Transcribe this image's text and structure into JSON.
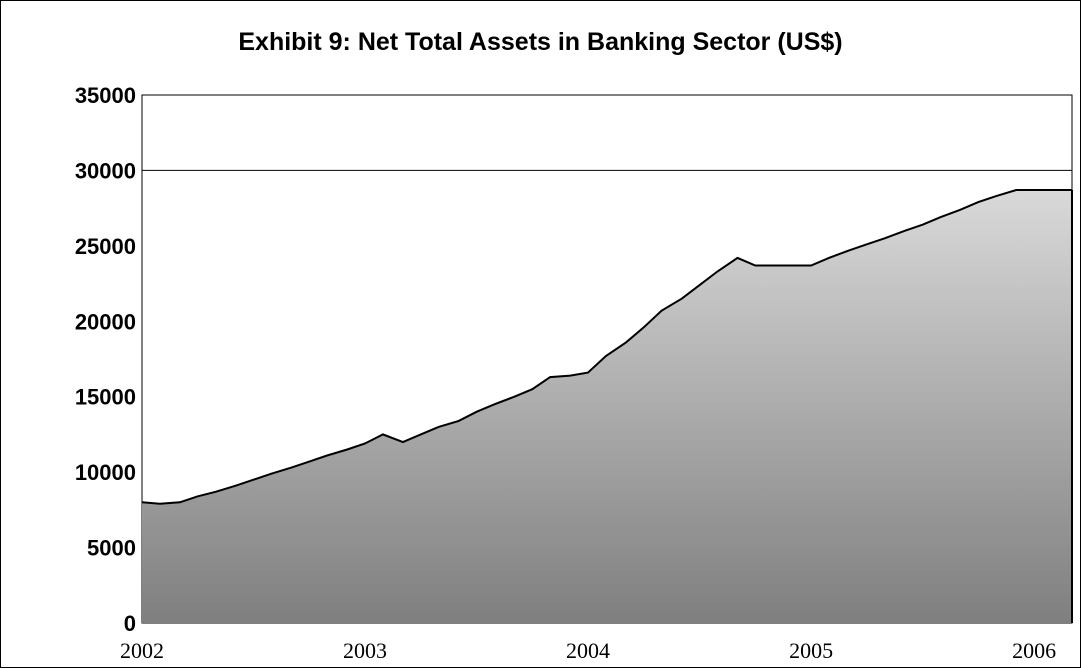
{
  "chart_data": {
    "type": "area",
    "title": "Exhibit 9: Net Total Assets in Banking Sector (US$)",
    "xlabel": "",
    "ylabel": "",
    "ylim": [
      0,
      35000
    ],
    "xlim": [
      2002.0,
      2006.17
    ],
    "y_ticks": [
      "0",
      "5000",
      "10000",
      "15000",
      "20000",
      "25000",
      "30000",
      "35000"
    ],
    "x_ticks": [
      "2002",
      "2003",
      "2004",
      "2005",
      "2006"
    ],
    "grid": "horizontal line at 30000",
    "legend": "none",
    "colors": {
      "line": "#000000",
      "fill_top": "#d9d9d9",
      "fill_bottom": "#7f7f7f"
    },
    "series": [
      {
        "x": [
          2002.0,
          2002.08,
          2002.17,
          2002.25,
          2002.33,
          2002.42,
          2002.5,
          2002.58,
          2002.67,
          2002.75,
          2002.83,
          2002.92,
          2003.0,
          2003.08,
          2003.17,
          2003.25,
          2003.33,
          2003.42,
          2003.5,
          2003.58,
          2003.67,
          2003.75,
          2003.83,
          2003.92,
          2004.0,
          2004.08,
          2004.17,
          2004.25,
          2004.33,
          2004.42,
          2004.5,
          2004.58,
          2004.67,
          2004.75,
          2004.83,
          2004.92,
          2005.0,
          2005.08,
          2005.17,
          2005.25,
          2005.33,
          2005.42,
          2005.5,
          2005.58,
          2005.67,
          2005.75,
          2005.83,
          2005.92,
          2006.0,
          2006.08,
          2006.17
        ],
        "values": [
          8000,
          7900,
          8000,
          8400,
          8700,
          9100,
          9500,
          9900,
          10300,
          10700,
          11100,
          11500,
          11900,
          12500,
          12000,
          12500,
          13000,
          13400,
          14000,
          14500,
          15000,
          15500,
          16300,
          16400,
          16600,
          17700,
          18600,
          19600,
          20700,
          21500,
          22400,
          23300,
          24200,
          23700,
          23700,
          23700,
          23700,
          24200,
          24700,
          25100,
          25500,
          26000,
          26400,
          26900,
          27400,
          27900,
          28300,
          28700,
          28700,
          28700,
          28700
        ]
      }
    ]
  }
}
